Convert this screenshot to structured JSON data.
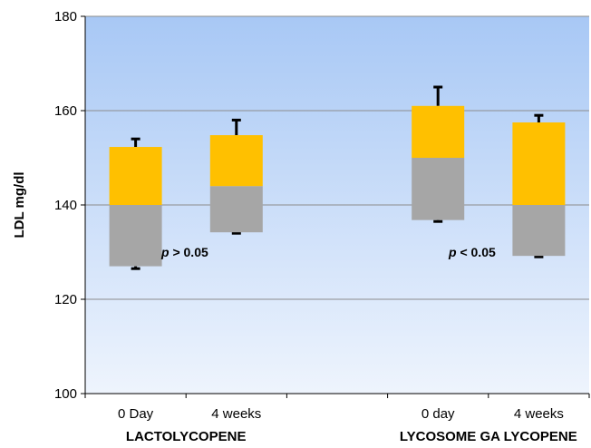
{
  "chart_data": {
    "type": "bar",
    "subtype": "floating-stacked-box",
    "ylabel": "LDL mg/dl",
    "ylim": [
      100,
      180
    ],
    "yticks": [
      100,
      120,
      140,
      160,
      180
    ],
    "grid": true,
    "legend": "none",
    "categories": [
      "0 Day",
      "4 weeks",
      "0 day",
      "4 weeks"
    ],
    "groups": [
      {
        "label": "LACTOLYCOPENE",
        "categories": [
          0,
          1
        ]
      },
      {
        "label": "LYCOSOME GA LYCOPENE",
        "categories": [
          2,
          3
        ]
      }
    ],
    "boxes": [
      {
        "min": 126.5,
        "q1": 127,
        "median": 140,
        "q3": 152.3,
        "max": 154
      },
      {
        "min": 134,
        "q1": 134.2,
        "median": 144,
        "q3": 154.8,
        "max": 158
      },
      {
        "min": 136.5,
        "q1": 136.8,
        "median": 150,
        "q3": 161,
        "max": 165
      },
      {
        "min": 129,
        "q1": 129.2,
        "median": 140,
        "q3": 157.5,
        "max": 159
      }
    ],
    "annotations": [
      {
        "text": "p > 0.05",
        "group": 0
      },
      {
        "text": "p < 0.05",
        "group": 1
      }
    ],
    "colors": {
      "lower_box": "#a6a6a6",
      "upper_box": "#ffc000",
      "whisker": "#000000",
      "plot_bg_top": "#a8c8f5",
      "plot_bg_bottom": "#eef4fd",
      "gridline": "#8c8c8c"
    }
  }
}
